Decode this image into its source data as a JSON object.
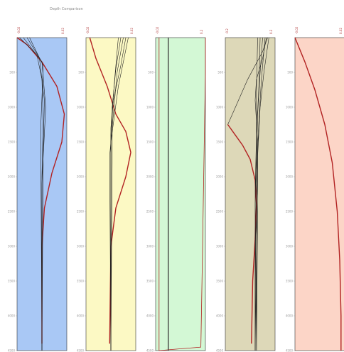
{
  "title": "Depth Comparison",
  "chart_data": [
    {
      "type": "line",
      "panel_bg": "#a9c8f5",
      "x_range": [
        -0.02,
        0.02
      ],
      "top_ticks": [
        "-0.02",
        "0.02"
      ],
      "y_range": [
        0,
        4500
      ],
      "y_ticks": [
        "500",
        "1000",
        "1500",
        "2000",
        "2500",
        "3000",
        "3500",
        "4000",
        "4500"
      ],
      "series": [
        {
          "color": "#b22222",
          "width": 1.4,
          "points": [
            [
              -0.02,
              0
            ],
            [
              -0.012,
              100
            ],
            [
              0.0,
              350
            ],
            [
              0.012,
              700
            ],
            [
              0.018,
              1100
            ],
            [
              0.016,
              1500
            ],
            [
              0.008,
              1950
            ],
            [
              0.002,
              2450
            ],
            [
              0.0,
              3000
            ],
            [
              0.0,
              4400
            ]
          ]
        },
        {
          "color": "#222222",
          "width": 0.6,
          "points": [
            [
              -0.018,
              0
            ],
            [
              -0.004,
              250
            ],
            [
              0.0,
              600
            ],
            [
              0.001,
              1200
            ],
            [
              0.0,
              2000
            ],
            [
              0.0,
              4500
            ]
          ]
        },
        {
          "color": "#222222",
          "width": 0.6,
          "points": [
            [
              -0.015,
              0
            ],
            [
              -0.002,
              300
            ],
            [
              0.002,
              900
            ],
            [
              0.001,
              1600
            ],
            [
              0.0,
              4500
            ]
          ]
        },
        {
          "color": "#222222",
          "width": 0.6,
          "points": [
            [
              -0.012,
              0
            ],
            [
              0.0,
              350
            ],
            [
              0.003,
              1000
            ],
            [
              0.0,
              2100
            ],
            [
              0.0,
              4500
            ]
          ]
        },
        {
          "color": "#222222",
          "width": 0.6,
          "points": [
            [
              -0.01,
              0
            ],
            [
              0.001,
              400
            ],
            [
              -0.001,
              1300
            ],
            [
              0.0,
              4500
            ]
          ]
        }
      ]
    },
    {
      "type": "line",
      "panel_bg": "#fcf9c4",
      "x_range": [
        -0.02,
        0.02
      ],
      "top_ticks": [
        "-0.02",
        "0.02"
      ],
      "y_range": [
        0,
        4500
      ],
      "y_ticks": [
        "500",
        "1000",
        "1500",
        "2000",
        "2500",
        "3000",
        "3500",
        "4000",
        "4500"
      ],
      "series": [
        {
          "color": "#b22222",
          "width": 1.4,
          "points": [
            [
              -0.017,
              0
            ],
            [
              -0.012,
              300
            ],
            [
              -0.003,
              700
            ],
            [
              0.004,
              1100
            ],
            [
              0.012,
              1350
            ],
            [
              0.016,
              1650
            ],
            [
              0.012,
              2000
            ],
            [
              0.004,
              2450
            ],
            [
              0.0,
              3000
            ],
            [
              -0.001,
              4400
            ]
          ]
        },
        {
          "color": "#222222",
          "width": 0.6,
          "points": [
            [
              0.012,
              0
            ],
            [
              0.008,
              400
            ],
            [
              0.002,
              900
            ],
            [
              0.0,
              1400
            ],
            [
              0.0,
              4500
            ]
          ]
        },
        {
          "color": "#222222",
          "width": 0.6,
          "points": [
            [
              0.01,
              0
            ],
            [
              0.005,
              500
            ],
            [
              0.002,
              1100
            ],
            [
              -0.001,
              1700
            ],
            [
              0.0,
              4500
            ]
          ]
        },
        {
          "color": "#222222",
          "width": 0.6,
          "points": [
            [
              0.008,
              0
            ],
            [
              0.004,
              450
            ],
            [
              0.001,
              1000
            ],
            [
              0.001,
              1800
            ],
            [
              0.0,
              4500
            ]
          ]
        },
        {
          "color": "#222222",
          "width": 0.6,
          "points": [
            [
              0.006,
              0
            ],
            [
              0.003,
              600
            ],
            [
              0.0,
              1300
            ],
            [
              0.0,
              4500
            ]
          ]
        },
        {
          "color": "#222222",
          "width": 0.6,
          "points": [
            [
              0.014,
              0
            ],
            [
              0.006,
              700
            ],
            [
              0.0,
              1500
            ],
            [
              0.0,
              4500
            ]
          ]
        }
      ]
    },
    {
      "type": "line",
      "panel_bg": "#d3f8d5",
      "x_range": [
        -0.02,
        0.2
      ],
      "top_ticks": [
        "-0.02",
        "0.2"
      ],
      "y_range": [
        0,
        4500
      ],
      "y_ticks": [
        "500",
        "1000",
        "1500",
        "2000",
        "2500",
        "3000",
        "3500",
        "4000",
        "4500"
      ],
      "series": [
        {
          "color": "#b22222",
          "width": 0.8,
          "points": [
            [
              -0.005,
              0
            ],
            [
              -0.005,
              1000
            ],
            [
              -0.005,
              2500
            ],
            [
              -0.005,
              4500
            ],
            [
              0.18,
              4450
            ],
            [
              0.185,
              3500
            ],
            [
              0.19,
              2500
            ],
            [
              0.195,
              1500
            ],
            [
              0.2,
              500
            ],
            [
              0.2,
              0
            ]
          ]
        },
        {
          "color": "#222222",
          "width": 0.8,
          "points": [
            [
              0.035,
              0
            ],
            [
              0.035,
              4500
            ]
          ]
        },
        {
          "color": "#555555",
          "width": 0.5,
          "points": [
            [
              0.038,
              0
            ],
            [
              0.038,
              4500
            ]
          ]
        }
      ]
    },
    {
      "type": "line",
      "panel_bg": "#ddd8b8",
      "x_range": [
        -0.2,
        0.2
      ],
      "top_ticks": [
        "-0.2",
        "0.2"
      ],
      "y_range": [
        0,
        4500
      ],
      "y_ticks": [
        "500",
        "1000",
        "1500",
        "2000",
        "2500",
        "3000",
        "3500",
        "4000",
        "4500"
      ],
      "series": [
        {
          "color": "#b22222",
          "width": 1.4,
          "points": [
            [
              -0.18,
              1250
            ],
            [
              -0.12,
              1400
            ],
            [
              -0.06,
              1550
            ],
            [
              0.0,
              1750
            ],
            [
              0.04,
              2050
            ],
            [
              0.05,
              2400
            ],
            [
              0.04,
              2900
            ],
            [
              0.02,
              3500
            ],
            [
              0.01,
              4400
            ]
          ]
        },
        {
          "color": "#222222",
          "width": 0.6,
          "points": [
            [
              0.14,
              0
            ],
            [
              0.1,
              200
            ],
            [
              -0.02,
              600
            ],
            [
              -0.18,
              1250
            ]
          ]
        },
        {
          "color": "#222222",
          "width": 0.6,
          "points": [
            [
              0.13,
              0
            ],
            [
              0.1,
              300
            ],
            [
              0.05,
              600
            ],
            [
              0.04,
              900
            ],
            [
              0.06,
              1500
            ],
            [
              0.06,
              2200
            ],
            [
              0.04,
              3000
            ],
            [
              0.04,
              4500
            ]
          ]
        },
        {
          "color": "#222222",
          "width": 0.6,
          "points": [
            [
              0.1,
              0
            ],
            [
              0.08,
              500
            ],
            [
              0.06,
              1100
            ],
            [
              0.05,
              1800
            ],
            [
              0.06,
              2600
            ],
            [
              0.05,
              4500
            ]
          ]
        },
        {
          "color": "#222222",
          "width": 0.6,
          "points": [
            [
              0.08,
              0
            ],
            [
              0.07,
              700
            ],
            [
              0.05,
              1400
            ],
            [
              0.04,
              2200
            ],
            [
              0.05,
              4500
            ]
          ]
        },
        {
          "color": "#222222",
          "width": 0.6,
          "points": [
            [
              0.06,
              0
            ],
            [
              0.05,
              800
            ],
            [
              0.05,
              1600
            ],
            [
              0.04,
              2400
            ],
            [
              0.04,
              4500
            ]
          ]
        },
        {
          "color": "#222222",
          "width": 0.6,
          "points": [
            [
              0.12,
              0
            ],
            [
              0.09,
              600
            ],
            [
              0.07,
              1200
            ],
            [
              0.05,
              2000
            ],
            [
              0.05,
              4500
            ]
          ]
        },
        {
          "color": "#222222",
          "width": 0.6,
          "points": [
            [
              0.15,
              0
            ],
            [
              0.11,
              500
            ],
            [
              0.08,
              1000
            ],
            [
              0.06,
              1700
            ],
            [
              0.04,
              4500
            ]
          ]
        }
      ]
    },
    {
      "type": "line",
      "panel_bg": "#fcd5c7",
      "x_range": [
        -0.02,
        0.02
      ],
      "top_ticks": [
        "-0.02",
        "0.02"
      ],
      "y_range": [
        0,
        4500
      ],
      "y_ticks": [
        "500",
        "1000",
        "1500",
        "2000",
        "2500",
        "3000",
        "3500",
        "4000",
        "4500"
      ],
      "series": [
        {
          "color": "#b22222",
          "width": 1.4,
          "points": [
            [
              -0.02,
              0
            ],
            [
              -0.012,
              350
            ],
            [
              -0.004,
              750
            ],
            [
              0.004,
              1250
            ],
            [
              0.01,
              1800
            ],
            [
              0.014,
              2500
            ],
            [
              0.016,
              3200
            ],
            [
              0.017,
              4000
            ],
            [
              0.017,
              4500
            ]
          ]
        }
      ]
    }
  ]
}
